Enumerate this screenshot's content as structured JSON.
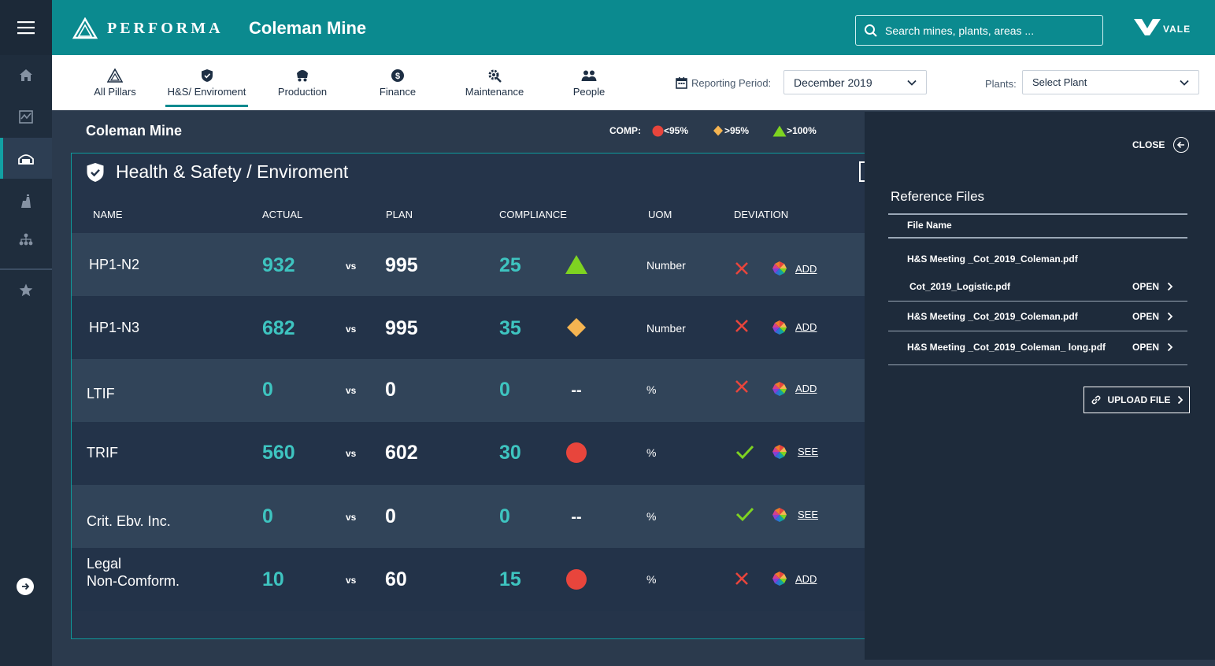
{
  "app": {
    "brand": "PERFORMA",
    "page_title": "Coleman Mine",
    "search_placeholder": "Search mines, plants, areas ...",
    "client_logo": "VALE"
  },
  "nav_rail": [
    "menu-icon",
    "home-icon",
    "chart-icon",
    "mine-icon",
    "plant-icon",
    "hierarchy-icon",
    "star-icon",
    "arrow-right-icon"
  ],
  "tabs": [
    {
      "label": "All Pillars",
      "icon": "triangle-icon",
      "active": false
    },
    {
      "label": "H&S/ Enviroment",
      "icon": "shield-icon",
      "active": true
    },
    {
      "label": "Production",
      "icon": "mine-cart-icon",
      "active": false
    },
    {
      "label": "Finance",
      "icon": "dollar-icon",
      "active": false
    },
    {
      "label": "Maintenance",
      "icon": "gear-wrench-icon",
      "active": false
    },
    {
      "label": "People",
      "icon": "people-icon",
      "active": false
    }
  ],
  "filters": {
    "period_label": "Reporting Period:",
    "period_value": "December 2019",
    "plants_label": "Plants:",
    "plants_value": "Select Plant"
  },
  "main": {
    "title": "Coleman Mine",
    "legend_label": "COMP:",
    "legend": [
      {
        "label": "<95%",
        "shape": "circle",
        "color": "#e8453c"
      },
      {
        "label": ">95%",
        "shape": "diamond",
        "color": "#f5b451"
      },
      {
        "label": ">100%",
        "shape": "triangle",
        "color": "#7ed321"
      }
    ]
  },
  "card": {
    "title": "Health & Safety / Enviroment",
    "columns": [
      "NAME",
      "ACTUAL",
      "PLAN",
      "COMPLIANCE",
      "UOM",
      "DEVIATION"
    ],
    "vs_label": "vs",
    "rows": [
      {
        "name": "HP1-N2",
        "actual": "932",
        "plan": "995",
        "compliance": "25",
        "indicator": "triangle",
        "uom": "Number",
        "deviation": "cross",
        "action": "ADD"
      },
      {
        "name": "HP1-N3",
        "actual": "682",
        "plan": "995",
        "compliance": "35",
        "indicator": "diamond",
        "uom": "Number",
        "deviation": "cross",
        "action": "ADD"
      },
      {
        "name": "LTIF",
        "actual": "0",
        "plan": "0",
        "compliance": "0",
        "indicator": "--",
        "uom": "%",
        "deviation": "cross",
        "action": "ADD"
      },
      {
        "name": "TRIF",
        "actual": "560",
        "plan": "602",
        "compliance": "30",
        "indicator": "circle",
        "uom": "%",
        "deviation": "check",
        "action": "SEE"
      },
      {
        "name": "Crit. Ebv. Inc.",
        "actual": "0",
        "plan": "0",
        "compliance": "0",
        "indicator": "--",
        "uom": "%",
        "deviation": "check",
        "action": "SEE"
      },
      {
        "name": "Legal\nNon-Comform.",
        "actual": "10",
        "plan": "60",
        "compliance": "15",
        "indicator": "circle",
        "uom": "%",
        "deviation": "cross",
        "action": "ADD"
      }
    ]
  },
  "panel": {
    "close_label": "CLOSE",
    "title": "Reference Files",
    "column": "File Name",
    "open_label": "OPEN",
    "files": [
      {
        "name": "H&S Meeting _Cot_2019_Coleman.pdf",
        "has_open": false
      },
      {
        "name": "Cot_2019_Logistic.pdf",
        "has_open": true
      },
      {
        "name": "H&S Meeting _Cot_2019_Coleman.pdf",
        "has_open": true
      },
      {
        "name": "H&S Meeting _Cot_2019_Coleman_ long.pdf",
        "has_open": true
      }
    ],
    "upload_label": "UPLOAD FILE"
  },
  "colors": {
    "teal": "#0b8a8f",
    "accent_text": "#3ec4c0",
    "red": "#e8453c",
    "orange": "#f5b451",
    "green": "#7ed321"
  }
}
